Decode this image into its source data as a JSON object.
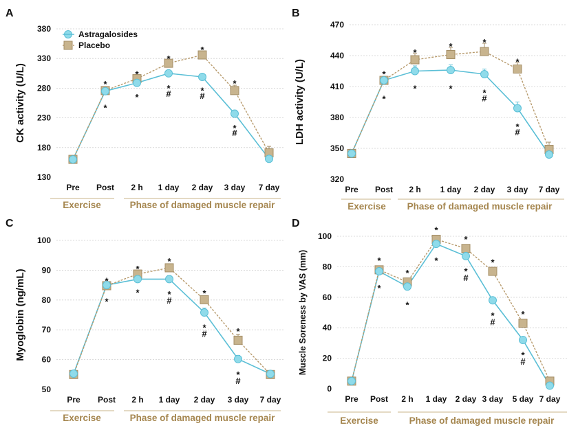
{
  "colors": {
    "astragalosides": "#8fdbea",
    "astragalosides_edge": "#5bbfd6",
    "placebo": "#c8b48e",
    "placebo_edge": "#a48e66",
    "placebo_line": "#b79a6c",
    "grid": "#cfcfcf",
    "phase_text": "#a5864f",
    "phase_rule": "#c9b488"
  },
  "legend": {
    "astragalosides": "Astragalosides",
    "placebo": "Placebo"
  },
  "chart_data": [
    {
      "panel": "A",
      "type": "line",
      "ylabel": "CK activity (U/L)",
      "ylim": [
        130,
        380
      ],
      "yticks": [
        130,
        180,
        230,
        280,
        330,
        380
      ],
      "grid": true,
      "legend_position": "top-left",
      "categories": [
        "Pre",
        "Post",
        "2 h",
        "1 day",
        "2 day",
        "3 day",
        "7 day"
      ],
      "phase_labels": {
        "exercise": "Exercise",
        "repair": "Phase of damaged muscle repair"
      },
      "series": [
        {
          "name": "Astragalosides",
          "values": [
            160,
            275,
            289,
            305,
            299,
            237,
            161
          ],
          "errors": [
            0,
            4,
            5,
            5,
            5,
            6,
            3
          ]
        },
        {
          "name": "Placebo",
          "values": [
            160,
            276,
            296,
            322,
            336,
            276,
            171
          ],
          "errors": [
            0,
            4,
            5,
            5,
            6,
            9,
            11
          ]
        }
      ],
      "annotations": [
        {
          "cat": 1,
          "val": 292,
          "text": "*"
        },
        {
          "cat": 1,
          "val": 252,
          "text": "*"
        },
        {
          "cat": 2,
          "val": 309,
          "text": "*"
        },
        {
          "cat": 2,
          "val": 270,
          "text": "*"
        },
        {
          "cat": 3,
          "val": 335,
          "text": "*"
        },
        {
          "cat": 3,
          "val": 285,
          "text": "*"
        },
        {
          "cat": 3,
          "val": 271,
          "text": "#"
        },
        {
          "cat": 4,
          "val": 350,
          "text": "*"
        },
        {
          "cat": 4,
          "val": 281,
          "text": "*"
        },
        {
          "cat": 4,
          "val": 268,
          "text": "#"
        },
        {
          "cat": 5,
          "val": 293,
          "text": "*"
        },
        {
          "cat": 5,
          "val": 218,
          "text": "*"
        },
        {
          "cat": 5,
          "val": 205,
          "text": "#"
        }
      ]
    },
    {
      "panel": "B",
      "type": "line",
      "ylabel": "LDH activity (U/L)",
      "ylim": [
        320,
        470
      ],
      "yticks": [
        320,
        350,
        380,
        410,
        440,
        470
      ],
      "grid": true,
      "categories": [
        "Pre",
        "Post",
        "2 h",
        "1 day",
        "2 day",
        "3 day",
        "7 day"
      ],
      "phase_labels": {
        "exercise": "Exercise",
        "repair": "Phase of damaged muscle repair"
      },
      "series": [
        {
          "name": "Astragalosides",
          "values": [
            345,
            416,
            425,
            426,
            422,
            389,
            344
          ],
          "errors": [
            2,
            3,
            5,
            5,
            5,
            6,
            3
          ]
        },
        {
          "name": "Placebo",
          "values": [
            345,
            416,
            436,
            441,
            444,
            427,
            349
          ],
          "errors": [
            3,
            3,
            6,
            7,
            8,
            6,
            7
          ]
        }
      ],
      "annotations": [
        {
          "cat": 1,
          "val": 425,
          "text": "*"
        },
        {
          "cat": 1,
          "val": 401,
          "text": "*"
        },
        {
          "cat": 2,
          "val": 446,
          "text": "*"
        },
        {
          "cat": 2,
          "val": 411,
          "text": "*"
        },
        {
          "cat": 3,
          "val": 452,
          "text": "*"
        },
        {
          "cat": 3,
          "val": 411,
          "text": "*"
        },
        {
          "cat": 4,
          "val": 456,
          "text": "*"
        },
        {
          "cat": 4,
          "val": 407,
          "text": "*"
        },
        {
          "cat": 4,
          "val": 399,
          "text": "#"
        },
        {
          "cat": 5,
          "val": 437,
          "text": "*"
        },
        {
          "cat": 5,
          "val": 374,
          "text": "*"
        },
        {
          "cat": 5,
          "val": 366,
          "text": "#"
        }
      ]
    },
    {
      "panel": "C",
      "type": "line",
      "ylabel": "Myoglobin  (ng/mL)",
      "ylim": [
        50,
        100
      ],
      "yticks": [
        50,
        60,
        70,
        80,
        90,
        100
      ],
      "grid": true,
      "categories": [
        "Pre",
        "Post",
        "2 h",
        "1 day",
        "2 day",
        "3 day",
        "7 day"
      ],
      "phase_labels": {
        "exercise": "Exercise",
        "repair": "Phase of damaged muscle repair"
      },
      "series": [
        {
          "name": "Astragalosides",
          "values": [
            55.3,
            85.0,
            87.0,
            87.0,
            75.8,
            60.2,
            55.2
          ],
          "errors": [
            0.5,
            1.0,
            1.2,
            1.2,
            1.5,
            1.2,
            0.5
          ]
        },
        {
          "name": "Placebo",
          "values": [
            55.0,
            84.8,
            88.7,
            90.8,
            80.1,
            66.5,
            55.0
          ],
          "errors": [
            0.5,
            1.0,
            1.0,
            1.0,
            1.0,
            2.0,
            0.6
          ]
        }
      ],
      "annotations": [
        {
          "cat": 1,
          "val": 87.5,
          "text": "*"
        },
        {
          "cat": 1,
          "val": 80.5,
          "text": "*"
        },
        {
          "cat": 2,
          "val": 91.5,
          "text": "*"
        },
        {
          "cat": 2,
          "val": 83.5,
          "text": "*"
        },
        {
          "cat": 3,
          "val": 94.0,
          "text": "*"
        },
        {
          "cat": 3,
          "val": 83.0,
          "text": "*"
        },
        {
          "cat": 3,
          "val": 80.0,
          "text": "#"
        },
        {
          "cat": 4,
          "val": 83.3,
          "text": "*"
        },
        {
          "cat": 4,
          "val": 71.8,
          "text": "*"
        },
        {
          "cat": 4,
          "val": 68.8,
          "text": "#"
        },
        {
          "cat": 5,
          "val": 70.5,
          "text": "*"
        },
        {
          "cat": 5,
          "val": 56.0,
          "text": "*"
        },
        {
          "cat": 5,
          "val": 53.0,
          "text": "#"
        }
      ]
    },
    {
      "panel": "D",
      "type": "line",
      "ylabel": "Muscle Soreness by VAS (mm)",
      "ylim": [
        0,
        100
      ],
      "yticks": [
        0,
        20,
        40,
        60,
        80,
        100
      ],
      "grid": true,
      "categories": [
        "Pre",
        "Post",
        "2 h",
        "1 day",
        "2 day",
        "3 day",
        "5 day",
        "7 day"
      ],
      "phase_labels": {
        "exercise": "Exercise",
        "repair": "Phase of damaged muscle repair"
      },
      "series": [
        {
          "name": "Astragalosides",
          "values": [
            5,
            77,
            67,
            95,
            87,
            58,
            32,
            2
          ],
          "errors": [
            1,
            2,
            2,
            2,
            2,
            2,
            2,
            1
          ]
        },
        {
          "name": "Placebo",
          "values": [
            5,
            78,
            70,
            98,
            92,
            77,
            43,
            5
          ],
          "errors": [
            1,
            2,
            2,
            2,
            2,
            2,
            2,
            1
          ]
        }
      ],
      "annotations": [
        {
          "cat": 1,
          "val": 86,
          "text": "*"
        },
        {
          "cat": 1,
          "val": 68,
          "text": "*"
        },
        {
          "cat": 2,
          "val": 78,
          "text": "*"
        },
        {
          "cat": 2,
          "val": 57,
          "text": "*"
        },
        {
          "cat": 3,
          "val": 106,
          "text": "*"
        },
        {
          "cat": 3,
          "val": 86,
          "text": "*"
        },
        {
          "cat": 4,
          "val": 100,
          "text": "*"
        },
        {
          "cat": 4,
          "val": 79,
          "text": "*"
        },
        {
          "cat": 4,
          "val": 73,
          "text": "#"
        },
        {
          "cat": 5,
          "val": 85,
          "text": "*"
        },
        {
          "cat": 5,
          "val": 50,
          "text": "*"
        },
        {
          "cat": 5,
          "val": 44,
          "text": "#"
        },
        {
          "cat": 6,
          "val": 51,
          "text": "*"
        },
        {
          "cat": 6,
          "val": 24,
          "text": "*"
        },
        {
          "cat": 6,
          "val": 18,
          "text": "#"
        }
      ]
    }
  ]
}
